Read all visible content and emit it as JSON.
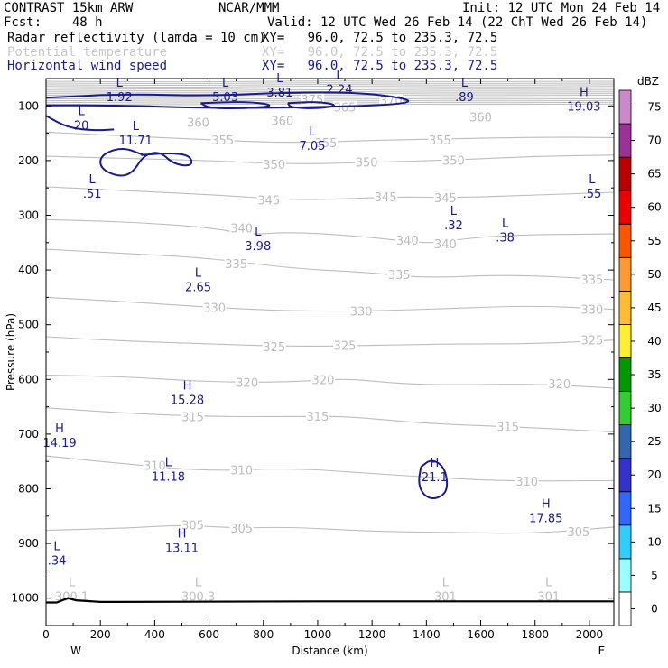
{
  "header": {
    "model": "CONTRAST 15km ARW",
    "org": "NCAR/MMM",
    "init": "Init: 12 UTC Mon 24 Feb 14",
    "fcst": "Fcst:    48 h",
    "valid": "Valid: 12 UTC Wed 26 Feb 14 (22 ChT Wed 26 Feb 14)",
    "field1": {
      "name": "Radar reflectivity (lamda = 10 cm)",
      "xy": "XY=   96.0, 72.5 to 235.3, 72.5"
    },
    "field2": {
      "name": "Potential temperature",
      "xy": "XY=   96.0, 72.5 to 235.3, 72.5"
    },
    "field3": {
      "name": "Horizontal wind speed",
      "xy": "XY=   96.0, 72.5 to 235.3, 72.5"
    }
  },
  "colors": {
    "theta": "#bdbdbd",
    "wind": "#1a1a8c",
    "terrain": "#000000"
  },
  "chart_data": {
    "type": "cross-section",
    "xlabel": "Distance (km)",
    "ylabel": "Pressure (hPa)",
    "xlim": [
      0,
      2090
    ],
    "ylim": [
      1050,
      50
    ],
    "xticks": [
      0,
      200,
      400,
      600,
      800,
      1000,
      1200,
      1400,
      1600,
      1800,
      2000
    ],
    "yticks": [
      100,
      200,
      300,
      400,
      500,
      600,
      700,
      800,
      900,
      1000
    ],
    "x_end_labels": {
      "left": "W",
      "right": "E"
    },
    "theta_contours": [
      {
        "level": 355,
        "pts": [
          [
            0,
            148
          ],
          [
            300,
            155
          ],
          [
            600,
            162
          ],
          [
            900,
            168
          ],
          [
            1200,
            163
          ],
          [
            1500,
            160
          ],
          [
            1800,
            157
          ],
          [
            2090,
            158
          ]
        ]
      },
      {
        "level": 350,
        "pts": [
          [
            0,
            192
          ],
          [
            300,
            196
          ],
          [
            600,
            200
          ],
          [
            900,
            207
          ],
          [
            1200,
            203
          ],
          [
            1500,
            199
          ],
          [
            1800,
            192
          ],
          [
            2090,
            190
          ]
        ]
      },
      {
        "level": 345,
        "pts": [
          [
            0,
            248
          ],
          [
            300,
            255
          ],
          [
            600,
            262
          ],
          [
            900,
            272
          ],
          [
            1100,
            270
          ],
          [
            1300,
            266
          ],
          [
            1500,
            268
          ],
          [
            1800,
            263
          ],
          [
            2090,
            258
          ]
        ]
      },
      {
        "level": 340,
        "pts": [
          [
            0,
            308
          ],
          [
            300,
            312
          ],
          [
            600,
            322
          ],
          [
            750,
            336
          ],
          [
            900,
            330
          ],
          [
            1200,
            340
          ],
          [
            1400,
            352
          ],
          [
            1500,
            345
          ],
          [
            1700,
            336
          ],
          [
            2090,
            334
          ]
        ]
      },
      {
        "level": 335,
        "pts": [
          [
            0,
            362
          ],
          [
            300,
            370
          ],
          [
            600,
            378
          ],
          [
            900,
            397
          ],
          [
            1200,
            405
          ],
          [
            1400,
            415
          ],
          [
            1700,
            408
          ],
          [
            2090,
            418
          ]
        ]
      },
      {
        "level": 330,
        "pts": [
          [
            0,
            450
          ],
          [
            300,
            458
          ],
          [
            600,
            468
          ],
          [
            900,
            475
          ],
          [
            1200,
            475
          ],
          [
            1500,
            470
          ],
          [
            1800,
            465
          ],
          [
            2090,
            472
          ]
        ]
      },
      {
        "level": 325,
        "pts": [
          [
            0,
            522
          ],
          [
            300,
            530
          ],
          [
            600,
            535
          ],
          [
            900,
            540
          ],
          [
            1200,
            538
          ],
          [
            1500,
            535
          ],
          [
            1800,
            535
          ],
          [
            2090,
            528
          ]
        ]
      },
      {
        "level": 320,
        "pts": [
          [
            0,
            592
          ],
          [
            300,
            595
          ],
          [
            600,
            605
          ],
          [
            900,
            605
          ],
          [
            1100,
            598
          ],
          [
            1300,
            608
          ],
          [
            1500,
            610
          ],
          [
            1800,
            608
          ],
          [
            2090,
            616
          ]
        ]
      },
      {
        "level": 315,
        "pts": [
          [
            0,
            652
          ],
          [
            300,
            662
          ],
          [
            600,
            668
          ],
          [
            900,
            668
          ],
          [
            1100,
            667
          ],
          [
            1400,
            681
          ],
          [
            1700,
            686
          ],
          [
            2090,
            696
          ]
        ]
      },
      {
        "level": 310,
        "pts": [
          [
            0,
            740
          ],
          [
            300,
            755
          ],
          [
            600,
            768
          ],
          [
            900,
            762
          ],
          [
            1200,
            772
          ],
          [
            1450,
            780
          ],
          [
            1700,
            786
          ],
          [
            2090,
            785
          ]
        ]
      },
      {
        "level": 305,
        "pts": [
          [
            0,
            876
          ],
          [
            300,
            872
          ],
          [
            500,
            866
          ],
          [
            700,
            872
          ],
          [
            900,
            870
          ],
          [
            1200,
            878
          ],
          [
            1500,
            880
          ],
          [
            1800,
            882
          ],
          [
            2090,
            870
          ]
        ]
      }
    ],
    "theta_labels": [
      {
        "text": "370",
        "x": 1270,
        "p": 90
      },
      {
        "text": "375",
        "x": 980,
        "p": 88
      },
      {
        "text": "365",
        "x": 1100,
        "p": 102
      },
      {
        "text": "360",
        "x": 870,
        "p": 127
      },
      {
        "text": "360",
        "x": 1600,
        "p": 120
      },
      {
        "text": "360",
        "x": 560,
        "p": 130
      },
      {
        "text": "355",
        "x": 650,
        "p": 162
      },
      {
        "text": "355",
        "x": 1030,
        "p": 167
      },
      {
        "text": "355",
        "x": 1450,
        "p": 162
      },
      {
        "text": "350",
        "x": 840,
        "p": 207
      },
      {
        "text": "350",
        "x": 1180,
        "p": 203
      },
      {
        "text": "350",
        "x": 1500,
        "p": 199
      },
      {
        "text": "345",
        "x": 820,
        "p": 272
      },
      {
        "text": "345",
        "x": 1250,
        "p": 266
      },
      {
        "text": "345",
        "x": 1470,
        "p": 268
      },
      {
        "text": "340",
        "x": 720,
        "p": 323
      },
      {
        "text": "340",
        "x": 1330,
        "p": 345
      },
      {
        "text": "340",
        "x": 1470,
        "p": 352
      },
      {
        "text": "335",
        "x": 700,
        "p": 388
      },
      {
        "text": "335",
        "x": 1300,
        "p": 408
      },
      {
        "text": "335",
        "x": 2010,
        "p": 417
      },
      {
        "text": "330",
        "x": 620,
        "p": 468
      },
      {
        "text": "330",
        "x": 1160,
        "p": 475
      },
      {
        "text": "330",
        "x": 2010,
        "p": 472
      },
      {
        "text": "325",
        "x": 840,
        "p": 540
      },
      {
        "text": "325",
        "x": 1100,
        "p": 538
      },
      {
        "text": "325",
        "x": 2010,
        "p": 528
      },
      {
        "text": "320",
        "x": 740,
        "p": 605
      },
      {
        "text": "320",
        "x": 1020,
        "p": 600
      },
      {
        "text": "320",
        "x": 1890,
        "p": 608
      },
      {
        "text": "315",
        "x": 540,
        "p": 668
      },
      {
        "text": "315",
        "x": 1000,
        "p": 667
      },
      {
        "text": "315",
        "x": 1700,
        "p": 686
      },
      {
        "text": "310",
        "x": 400,
        "p": 757
      },
      {
        "text": "310",
        "x": 720,
        "p": 765
      },
      {
        "text": "310",
        "x": 1770,
        "p": 786
      },
      {
        "text": "305",
        "x": 540,
        "p": 866
      },
      {
        "text": "305",
        "x": 720,
        "p": 872
      },
      {
        "text": "305",
        "x": 1960,
        "p": 878
      }
    ],
    "theta_extrema": [
      {
        "type": "L",
        "value": "300.1",
        "x": 95,
        "p": 993
      },
      {
        "type": "L",
        "value": "300.3",
        "x": 560,
        "p": 993
      },
      {
        "type": "L",
        "value": "301",
        "x": 1470,
        "p": 993
      },
      {
        "type": "L",
        "value": "301",
        "x": 1850,
        "p": 993
      }
    ],
    "wind_contours": [
      {
        "level": 20,
        "closed": false,
        "pts": [
          [
            0,
            85
          ],
          [
            300,
            78
          ],
          [
            600,
            82
          ],
          [
            900,
            75
          ],
          [
            1200,
            76
          ],
          [
            1400,
            95
          ],
          [
            1000,
            103
          ],
          [
            600,
            104
          ],
          [
            250,
            99
          ],
          [
            0,
            99
          ]
        ]
      },
      {
        "level": 20,
        "closed": true,
        "pts": [
          [
            570,
            95
          ],
          [
            750,
            92
          ],
          [
            850,
            100
          ],
          [
            720,
            105
          ],
          [
            600,
            104
          ]
        ]
      },
      {
        "level": 20,
        "closed": true,
        "pts": [
          [
            890,
            95
          ],
          [
            1000,
            92
          ],
          [
            1080,
            99
          ],
          [
            1000,
            105
          ],
          [
            900,
            103
          ]
        ]
      },
      {
        "level": 20,
        "closed": false,
        "pts": [
          [
            0,
            118
          ],
          [
            80,
            140
          ],
          [
            180,
            145
          ],
          [
            250,
            143
          ]
        ]
      },
      {
        "level": 20,
        "closed": false,
        "pts": [
          [
            350,
            190
          ],
          [
            450,
            186
          ],
          [
            530,
            190
          ],
          [
            540,
            210
          ],
          [
            470,
            207
          ],
          [
            420,
            183
          ],
          [
            360,
            190
          ],
          [
            320,
            222
          ],
          [
            270,
            230
          ],
          [
            200,
            215
          ],
          [
            200,
            190
          ],
          [
            280,
            175
          ],
          [
            360,
            190
          ]
        ]
      },
      {
        "level": 20,
        "closed": true,
        "pts": [
          [
            1380,
            760
          ],
          [
            1420,
            745
          ],
          [
            1470,
            762
          ],
          [
            1480,
            805
          ],
          [
            1430,
            820
          ],
          [
            1390,
            812
          ],
          [
            1370,
            790
          ]
        ]
      }
    ],
    "wind_extrema": [
      {
        "type": "L",
        "value": "1.92",
        "x": 270,
        "p": 78
      },
      {
        "type": "L",
        "value": "5.03",
        "x": 660,
        "p": 78
      },
      {
        "type": "L",
        "value": "3.81",
        "x": 860,
        "p": 70
      },
      {
        "type": "L",
        "value": "2.24",
        "x": 1080,
        "p": 64
      },
      {
        "type": "L",
        "value": ".89",
        "x": 1540,
        "p": 78
      },
      {
        "type": "H",
        "value": "19.03",
        "x": 1980,
        "p": 95
      },
      {
        "type": "L",
        "value": "20",
        "x": 130,
        "p": 130
      },
      {
        "type": "L",
        "value": "11.71",
        "x": 330,
        "p": 157
      },
      {
        "type": "L",
        "value": "7.05",
        "x": 980,
        "p": 167
      },
      {
        "type": "L",
        "value": ".51",
        "x": 170,
        "p": 255
      },
      {
        "type": "L",
        "value": ".55",
        "x": 2010,
        "p": 255
      },
      {
        "type": "L",
        "value": ".32",
        "x": 1500,
        "p": 312
      },
      {
        "type": "L",
        "value": ".38",
        "x": 1690,
        "p": 335
      },
      {
        "type": "L",
        "value": "3.98",
        "x": 780,
        "p": 350
      },
      {
        "type": "L",
        "value": "2.65",
        "x": 560,
        "p": 425
      },
      {
        "type": "H",
        "value": "15.28",
        "x": 520,
        "p": 632
      },
      {
        "type": "H",
        "value": "14.19",
        "x": 50,
        "p": 710
      },
      {
        "type": "L",
        "value": "11.18",
        "x": 450,
        "p": 772
      },
      {
        "type": "H",
        "value": "21.1",
        "x": 1430,
        "p": 773
      },
      {
        "type": "H",
        "value": "17.85",
        "x": 1840,
        "p": 848
      },
      {
        "type": "H",
        "value": "13.11",
        "x": 500,
        "p": 902
      },
      {
        "type": "L",
        "value": ".34",
        "x": 40,
        "p": 925
      }
    ],
    "terrain": [
      [
        0,
        1008
      ],
      [
        40,
        1008
      ],
      [
        80,
        1000
      ],
      [
        110,
        1004
      ],
      [
        200,
        1007
      ],
      [
        1000,
        1006
      ],
      [
        2090,
        1006
      ]
    ],
    "colorbar": {
      "unit": "dBZ",
      "levels": [
        0,
        5,
        10,
        15,
        20,
        25,
        30,
        35,
        40,
        45,
        50,
        55,
        60,
        65,
        70,
        75
      ],
      "colors": [
        "#ffffff",
        "#99ffff",
        "#33ccff",
        "#3366ff",
        "#3333cc",
        "#3366aa",
        "#33cc33",
        "#009900",
        "#ffee33",
        "#ffbb33",
        "#ff9933",
        "#ff5500",
        "#ee0000",
        "#bb0000",
        "#993399",
        "#cc88cc"
      ]
    }
  }
}
